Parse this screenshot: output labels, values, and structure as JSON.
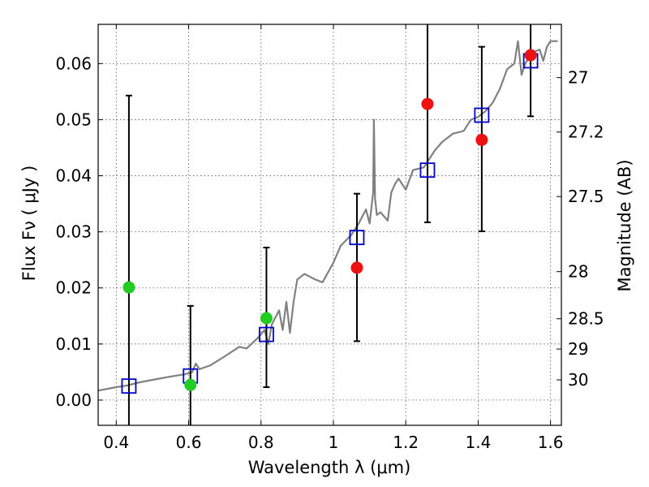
{
  "chart_data": {
    "type": "scatter",
    "xlabel": "Wavelength  λ (μm)",
    "ylabel": "Flux  Fν  ( μJy )",
    "y2label": "Magnitude (AB)",
    "xlim": [
      0.35,
      1.63
    ],
    "ylim": [
      -0.0045,
      0.067
    ],
    "grid": true,
    "x_ticks": [
      0.4,
      0.6,
      0.8,
      1.0,
      1.2,
      1.4,
      1.6
    ],
    "x_tick_labels": [
      "0.4",
      "0.6",
      "0.8",
      "1",
      "1.2",
      "1.4",
      "1.6"
    ],
    "y_ticks": [
      0.0,
      0.01,
      0.02,
      0.03,
      0.04,
      0.05,
      0.06
    ],
    "y_tick_labels": [
      "0.00",
      "0.01",
      "0.02",
      "0.03",
      "0.04",
      "0.05",
      "0.06"
    ],
    "y2_ticks": [
      {
        "label": "27",
        "flux": 0.0575
      },
      {
        "label": "27.2",
        "flux": 0.0478
      },
      {
        "label": "27.5",
        "flux": 0.0363
      },
      {
        "label": "28",
        "flux": 0.0229
      },
      {
        "label": "28.5",
        "flux": 0.0145
      },
      {
        "label": "29",
        "flux": 0.0091
      },
      {
        "label": "30",
        "flux": 0.0036
      }
    ],
    "spectrum": {
      "color": "#808080",
      "x": [
        0.35,
        0.4,
        0.43,
        0.46,
        0.5,
        0.55,
        0.59,
        0.61,
        0.62,
        0.63,
        0.66,
        0.7,
        0.74,
        0.76,
        0.79,
        0.81,
        0.82,
        0.83,
        0.85,
        0.86,
        0.87,
        0.88,
        0.89,
        0.9,
        0.92,
        0.95,
        0.97,
        1.0,
        1.02,
        1.05,
        1.07,
        1.09,
        1.1,
        1.11,
        1.112,
        1.115,
        1.12,
        1.13,
        1.15,
        1.16,
        1.17,
        1.18,
        1.2,
        1.22,
        1.25,
        1.28,
        1.3,
        1.33,
        1.36,
        1.38,
        1.4,
        1.42,
        1.44,
        1.46,
        1.48,
        1.5,
        1.51,
        1.52,
        1.53,
        1.55,
        1.57,
        1.58,
        1.59,
        1.6,
        1.62
      ],
      "y": [
        0.0017,
        0.0023,
        0.0026,
        0.0031,
        0.0036,
        0.0042,
        0.0046,
        0.005,
        0.0065,
        0.0055,
        0.0062,
        0.0078,
        0.0095,
        0.0092,
        0.011,
        0.0125,
        0.01,
        0.0135,
        0.016,
        0.0125,
        0.0175,
        0.012,
        0.0175,
        0.0215,
        0.0225,
        0.0215,
        0.021,
        0.0245,
        0.0275,
        0.0295,
        0.0315,
        0.034,
        0.0315,
        0.037,
        0.05,
        0.036,
        0.033,
        0.0335,
        0.032,
        0.037,
        0.0385,
        0.0395,
        0.0375,
        0.041,
        0.0415,
        0.0445,
        0.046,
        0.0475,
        0.048,
        0.05,
        0.0505,
        0.0515,
        0.053,
        0.0555,
        0.059,
        0.06,
        0.064,
        0.058,
        0.06,
        0.062,
        0.0625,
        0.0605,
        0.063,
        0.064,
        0.064
      ]
    },
    "series": [
      {
        "marker": "square-open",
        "color": "#0000cc",
        "x": [
          0.435,
          0.605,
          0.815,
          1.065,
          1.26,
          1.41,
          1.545
        ],
        "y": [
          0.0025,
          0.0043,
          0.0117,
          0.029,
          0.041,
          0.0508,
          0.0605
        ]
      },
      {
        "marker": "circle",
        "color": "#22cc22",
        "x": [
          0.435,
          0.605,
          0.815
        ],
        "y": [
          0.0201,
          0.0027,
          0.0146
        ]
      },
      {
        "marker": "circle",
        "color": "#ee1111",
        "x": [
          1.065,
          1.26,
          1.41,
          1.545
        ],
        "y": [
          0.0236,
          0.0528,
          0.0464,
          0.0615
        ]
      }
    ],
    "error_bars": [
      {
        "x": 0.435,
        "low": -0.0045,
        "high": 0.0543,
        "cap_low": false,
        "cap_high": true
      },
      {
        "x": 0.605,
        "low": -0.0045,
        "high": 0.0168,
        "cap_low": false,
        "cap_high": true
      },
      {
        "x": 0.815,
        "low": 0.0023,
        "high": 0.0272,
        "cap_low": true,
        "cap_high": true
      },
      {
        "x": 1.065,
        "low": 0.0105,
        "high": 0.0368,
        "cap_low": true,
        "cap_high": true
      },
      {
        "x": 1.26,
        "low": 0.0317,
        "high": 0.067,
        "cap_low": true,
        "cap_high": false
      },
      {
        "x": 1.41,
        "low": 0.0301,
        "high": 0.063,
        "cap_low": true,
        "cap_high": true
      },
      {
        "x": 1.545,
        "low": 0.0506,
        "high": 0.067,
        "cap_low": true,
        "cap_high": false
      }
    ]
  }
}
